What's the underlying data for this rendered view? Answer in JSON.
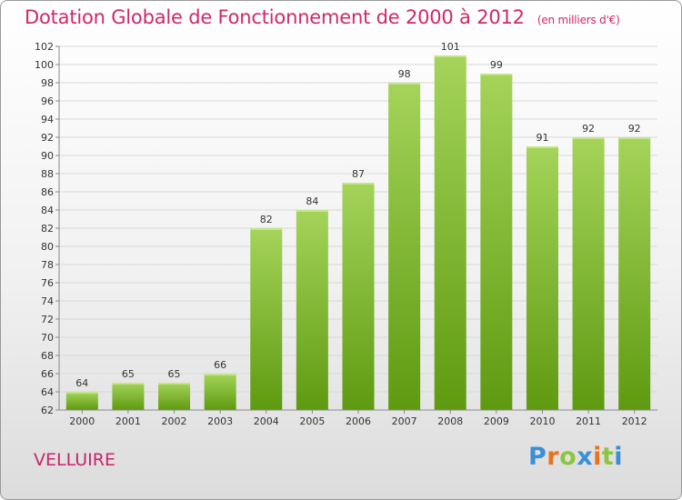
{
  "header": {
    "title": "Dotation Globale de Fonctionnement de 2000 à 2012",
    "unit": "(en milliers d'€)"
  },
  "footer": {
    "place": "VELLUIRE",
    "brand": "Proxiti",
    "brand_letters": [
      "P",
      "r",
      "o",
      "x",
      "i",
      "t",
      "i"
    ],
    "brand_colors": [
      "#3a8fd6",
      "#e8731f",
      "#8cc63f",
      "#3a8fd6",
      "#e8731f",
      "#8cc63f",
      "#3a8fd6"
    ]
  },
  "colors": {
    "bar_top": "#a4d45a",
    "bar_bottom": "#5e9a10",
    "title": "#d0286a"
  },
  "chart_data": {
    "type": "bar",
    "title": "Dotation Globale de Fonctionnement de 2000 à 2012",
    "subtitle": "(en milliers d'€)",
    "xlabel": "",
    "ylabel": "",
    "categories": [
      "2000",
      "2001",
      "2002",
      "2003",
      "2004",
      "2005",
      "2006",
      "2007",
      "2008",
      "2009",
      "2010",
      "2011",
      "2012"
    ],
    "values": [
      64,
      65,
      65,
      66,
      82,
      84,
      87,
      98,
      101,
      99,
      91,
      92,
      92
    ],
    "ylim": [
      62,
      102
    ],
    "yticks": [
      62,
      64,
      66,
      68,
      70,
      72,
      74,
      76,
      78,
      80,
      82,
      84,
      86,
      88,
      90,
      92,
      94,
      96,
      98,
      100,
      102
    ],
    "grid": true,
    "data_labels": true
  }
}
